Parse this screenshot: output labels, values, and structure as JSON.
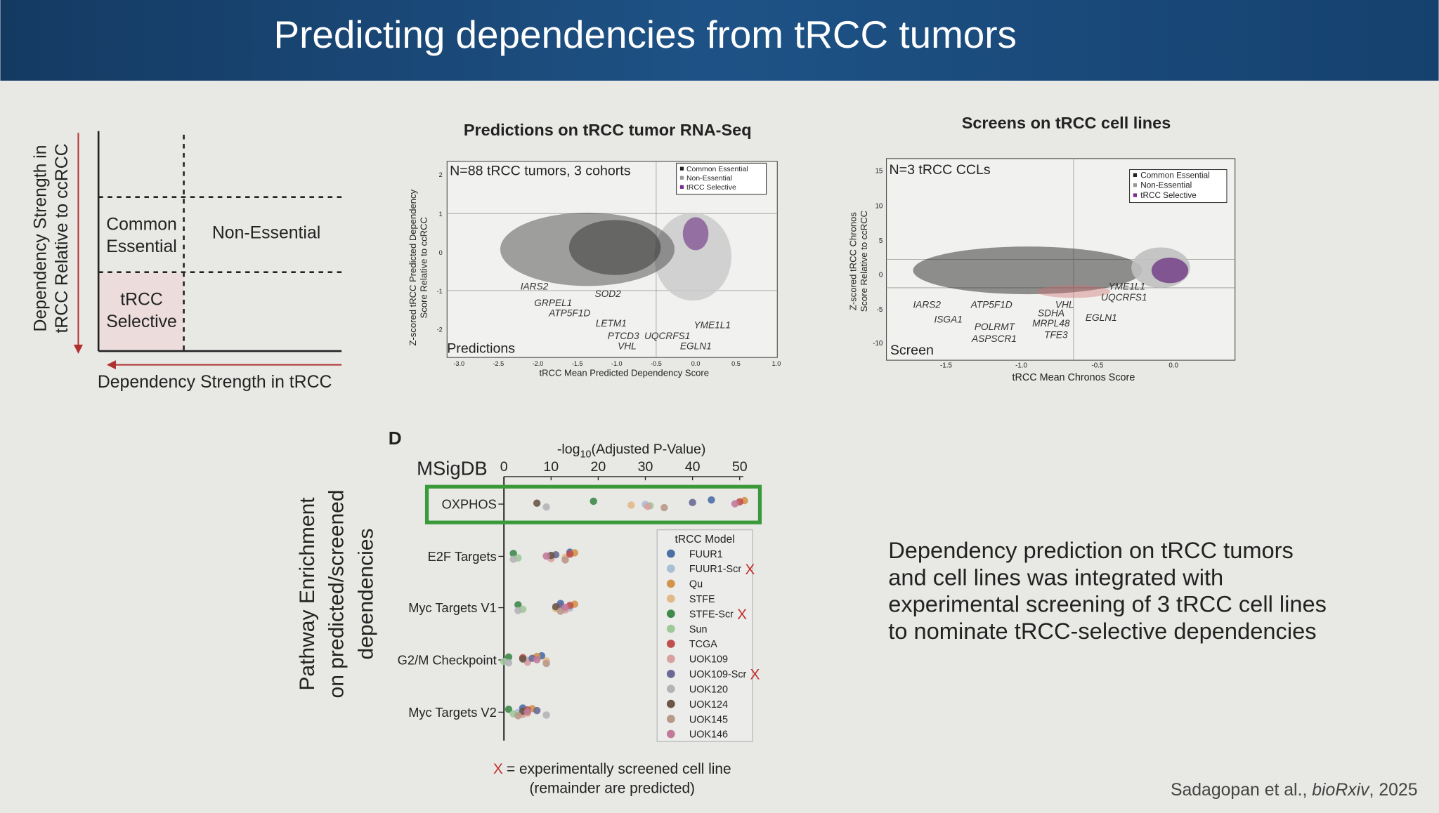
{
  "header": {
    "title": "Predicting dependencies from tRCC tumors"
  },
  "schematic": {
    "y_axis_label": [
      "Dependency Strength in",
      "tRCC Relative to ccRCC"
    ],
    "x_axis_label": "Dependency Strength in tRCC",
    "common_essential": [
      "Common",
      "Essential"
    ],
    "non_essential": "Non-Essential",
    "trcc_selective": [
      "tRCC",
      "Selective"
    ]
  },
  "panel_b": {
    "title": "Predictions on tRCC tumor RNA-Seq",
    "annotation": "N=88 tRCC tumors, 3 cohorts",
    "legend": [
      "Common Essential",
      "Non-Essential",
      "tRCC Selective"
    ],
    "corner_label": "Predictions",
    "x_label": "tRCC Mean Predicted Dependency Score",
    "y_label": [
      "Z-scored tRCC Predicted Dependency",
      "Score Relative to ccRCC"
    ],
    "xticks": [
      "-3.0",
      "-2.5",
      "-2.0",
      "-1.5",
      "-1.0",
      "-0.5",
      "0.0",
      "0.5",
      "1.0"
    ],
    "yticks": [
      "2",
      "1",
      "0",
      "-1",
      "-2"
    ],
    "genes": [
      "IARS2",
      "SOD2",
      "GRPEL1",
      "ATP5F1D",
      "LETM1",
      "YME1L1",
      "PTCD3",
      "UQCRFS1",
      "VHL",
      "EGLN1"
    ]
  },
  "panel_c": {
    "title": "Screens on tRCC cell lines",
    "annotation": "N=3 tRCC CCLs",
    "legend": [
      "Common Essential",
      "Non-Essential",
      "tRCC Selective"
    ],
    "corner_label": "Screen",
    "x_label": "tRCC Mean Chronos Score",
    "y_label": [
      "Z-scored tRCC Chronos",
      "Score Relative to ccRCC"
    ],
    "xticks": [
      "-1.5",
      "-1.0",
      "-0.5",
      "0.0"
    ],
    "yticks": [
      "15",
      "10",
      "5",
      "0",
      "-5",
      "-10"
    ],
    "genes": [
      "IARS2",
      "ATP5F1D",
      "VHL",
      "YME1L1",
      "UQCRFS1",
      "ISGA1",
      "SDHA",
      "EGLN1",
      "POLRMT",
      "MRPL48",
      "ASPSCR1",
      "TFE3"
    ]
  },
  "chart_data": {
    "type": "dot",
    "panel_label": "D",
    "title_parts": [
      "-log",
      "10",
      "(Adjusted P-Value)"
    ],
    "axis_caption": "MSigDB",
    "y_label": [
      "Pathway Enrichment",
      "on predicted/screened",
      "dependencies"
    ],
    "categories": [
      "OXPHOS",
      "E2F Targets",
      "Myc Targets V1",
      "G2/M Checkpoint",
      "Myc Targets V2"
    ],
    "xlim": [
      0,
      50
    ],
    "xticks": [
      0,
      10,
      20,
      30,
      40,
      50
    ],
    "legend_title": "tRCC Model",
    "screened_marker": "X",
    "series": [
      {
        "name": "FUUR1",
        "color": "#4b6fa5",
        "values": [
          44,
          14,
          12,
          8,
          4
        ]
      },
      {
        "name": "FUUR1-Scr",
        "color": "#a9bfd6",
        "screened": true,
        "values": [
          30,
          10,
          14,
          5,
          3
        ]
      },
      {
        "name": "Qu",
        "color": "#d4934a",
        "values": [
          51,
          15,
          15,
          7,
          6
        ]
      },
      {
        "name": "STFE",
        "color": "#e3b98a",
        "values": [
          27,
          13,
          11,
          9,
          5
        ]
      },
      {
        "name": "STFE-Scr",
        "color": "#3e8a4b",
        "screened": true,
        "values": [
          19,
          2,
          3,
          1,
          1
        ]
      },
      {
        "name": "Sun",
        "color": "#9fc99a",
        "values": [
          31,
          3,
          4,
          0,
          2
        ]
      },
      {
        "name": "TCGA",
        "color": "#c0504d",
        "values": [
          50,
          14,
          14,
          4,
          5
        ]
      },
      {
        "name": "UOK109",
        "color": "#d9a0a0",
        "values": [
          30.5,
          10,
          13,
          5,
          4
        ]
      },
      {
        "name": "UOK109-Scr",
        "color": "#6a6a96",
        "screened": true,
        "values": [
          40,
          11,
          12,
          6,
          7
        ]
      },
      {
        "name": "UOK120",
        "color": "#b4b4b8",
        "values": [
          9,
          2,
          3,
          1,
          9
        ]
      },
      {
        "name": "UOK124",
        "color": "#6b5648",
        "values": [
          7,
          10,
          11,
          4,
          4
        ]
      },
      {
        "name": "UOK145",
        "color": "#b89a8a",
        "values": [
          34,
          13,
          12,
          9,
          3
        ]
      },
      {
        "name": "UOK146",
        "color": "#c27a9a",
        "values": [
          49,
          9,
          13,
          7,
          5
        ]
      }
    ],
    "footnote": [
      "X",
      "= experimentally screened cell line",
      "(remainder are predicted)"
    ]
  },
  "summary": [
    "Dependency prediction on tRCC tumors",
    "and cell lines was integrated with",
    "experimental screening of 3 tRCC cell lines",
    "to nominate tRCC-selective dependencies"
  ],
  "citation": [
    "Sadagopan et al., ",
    "bioRxiv",
    ", 2025"
  ]
}
